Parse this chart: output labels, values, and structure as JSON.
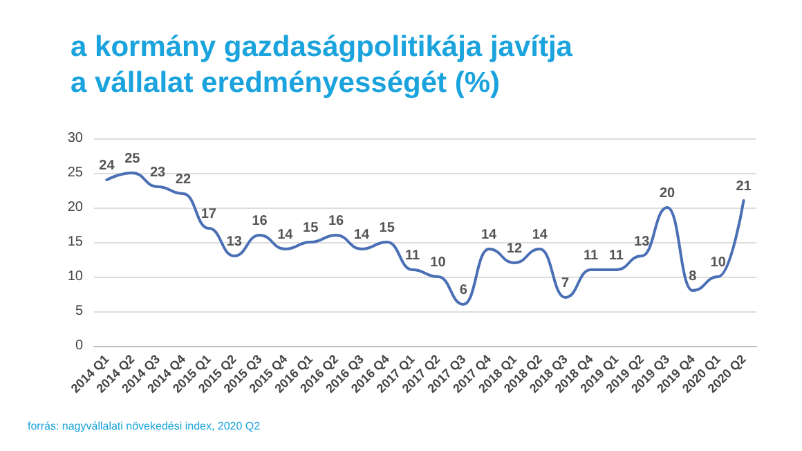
{
  "chart_data": {
    "type": "line",
    "title": "a kormány gazdaságpolitikája javítja a vállalat eredményességét (%)",
    "categories": [
      "2014 Q1",
      "2014 Q2",
      "2014 Q3",
      "2014 Q4",
      "2015 Q1",
      "2015 Q2",
      "2015 Q3",
      "2015 Q4",
      "2016 Q1",
      "2016 Q2",
      "2016 Q3",
      "2016 Q4",
      "2017 Q1",
      "2017 Q2",
      "2017 Q3",
      "2017 Q4",
      "2018 Q1",
      "2018 Q2",
      "2018 Q3",
      "2018 Q4",
      "2019 Q1",
      "2019 Q2",
      "2019 Q3",
      "2019 Q4",
      "2020 Q1",
      "2020 Q2"
    ],
    "series": [
      {
        "color": "#4a6fb5",
        "values": [
          24,
          25,
          23,
          22,
          17,
          13,
          16,
          14,
          15,
          16,
          14,
          15,
          11,
          10,
          6,
          14,
          12,
          14,
          7,
          11,
          11,
          13,
          20,
          8,
          10,
          21
        ]
      }
    ],
    "ylim": [
      0,
      30
    ],
    "yticks": [
      0,
      5,
      10,
      15,
      20,
      25,
      30
    ],
    "grid": "y",
    "data_labels": true,
    "marker": "none",
    "line_style": "solid",
    "annotations": [
      "forrás: nagyvállalati növekedési index, 2020 Q2"
    ]
  }
}
